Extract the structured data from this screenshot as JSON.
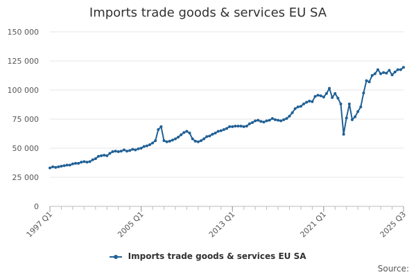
{
  "chart_data": {
    "type": "line",
    "title": "Imports trade goods & services EU SA",
    "xlabel": "",
    "ylabel": "",
    "series": [
      {
        "name": "Imports trade goods & services EU SA",
        "color": "#206095",
        "values": [
          33000,
          34000,
          33500,
          34000,
          34500,
          35000,
          35500,
          35500,
          36500,
          37000,
          37000,
          38000,
          38500,
          38000,
          38500,
          40000,
          41000,
          43000,
          43500,
          44000,
          43500,
          45500,
          47000,
          47500,
          47000,
          47500,
          48500,
          47500,
          48000,
          49000,
          48500,
          49500,
          50000,
          51500,
          52000,
          53000,
          54500,
          56500,
          66000,
          68500,
          56500,
          55500,
          56000,
          57000,
          58000,
          59500,
          61500,
          63500,
          64500,
          63000,
          58000,
          56000,
          55500,
          56500,
          58000,
          60000,
          60500,
          62000,
          63000,
          64500,
          65000,
          66000,
          67000,
          68500,
          68500,
          69000,
          69000,
          69000,
          68500,
          69000,
          71000,
          72000,
          73500,
          74000,
          73000,
          72500,
          73500,
          74000,
          75500,
          74500,
          74000,
          73500,
          74500,
          75500,
          77500,
          80500,
          84000,
          85500,
          86000,
          88000,
          89500,
          90500,
          90000,
          94500,
          95500,
          95000,
          94000,
          97000,
          101500,
          93500,
          97000,
          93000,
          88000,
          62000,
          76000,
          88000,
          74500,
          77000,
          81500,
          85500,
          97500,
          108000,
          107000,
          112500,
          114000,
          117500,
          114000,
          115000,
          114500,
          117000,
          113000,
          115500,
          117500,
          117500,
          119500
        ]
      }
    ],
    "x_ticks": [
      "1997 Q1",
      "2005 Q1",
      "2013 Q1",
      "2021 Q1",
      "2025 Q3"
    ],
    "y_ticks": [
      "0",
      "25 000",
      "50 000",
      "75 000",
      "100 000",
      "125 000",
      "150 000"
    ],
    "ylim": [
      0,
      150000
    ],
    "grid": true,
    "legend_position": "bottom"
  },
  "source_label": "Source:"
}
